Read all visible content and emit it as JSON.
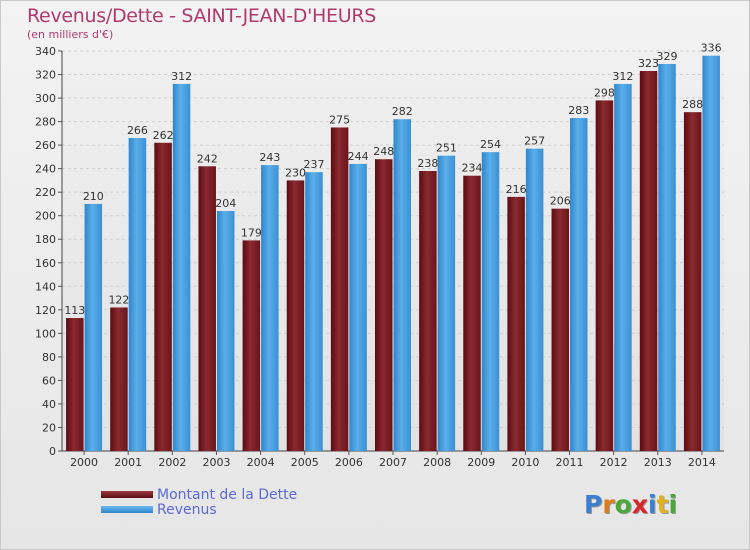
{
  "title": "Revenus/Dette - SAINT-JEAN-D'HEURS",
  "subtitle": "(en milliers d'€)",
  "logo_text": "Proxiti",
  "colors": {
    "title": "#b0396d",
    "dette": "#7a1f25",
    "revenus": "#4a9fe0",
    "legend_text": "#5b6ad6",
    "grid": "#d0d0d0"
  },
  "chart_data": {
    "type": "bar",
    "title": "Revenus/Dette - SAINT-JEAN-D'HEURS",
    "subtitle": "(en milliers d'€)",
    "xlabel": "",
    "ylabel": "",
    "categories": [
      "2000",
      "2001",
      "2002",
      "2003",
      "2004",
      "2005",
      "2006",
      "2007",
      "2008",
      "2009",
      "2010",
      "2011",
      "2012",
      "2013",
      "2014"
    ],
    "series": [
      {
        "name": "Montant de la Dette",
        "color": "#7a1f25",
        "values": [
          113,
          122,
          262,
          242,
          179,
          230,
          275,
          248,
          238,
          234,
          216,
          206,
          298,
          323,
          288
        ]
      },
      {
        "name": "Revenus",
        "color": "#4a9fe0",
        "values": [
          210,
          266,
          312,
          204,
          243,
          237,
          244,
          282,
          251,
          254,
          257,
          283,
          312,
          329,
          336
        ]
      }
    ],
    "ylim": [
      0,
      340
    ],
    "yticks": [
      0,
      20,
      40,
      60,
      80,
      100,
      120,
      140,
      160,
      180,
      200,
      220,
      240,
      260,
      280,
      300,
      320,
      340
    ],
    "grid": true,
    "legend": "bottom-left"
  }
}
